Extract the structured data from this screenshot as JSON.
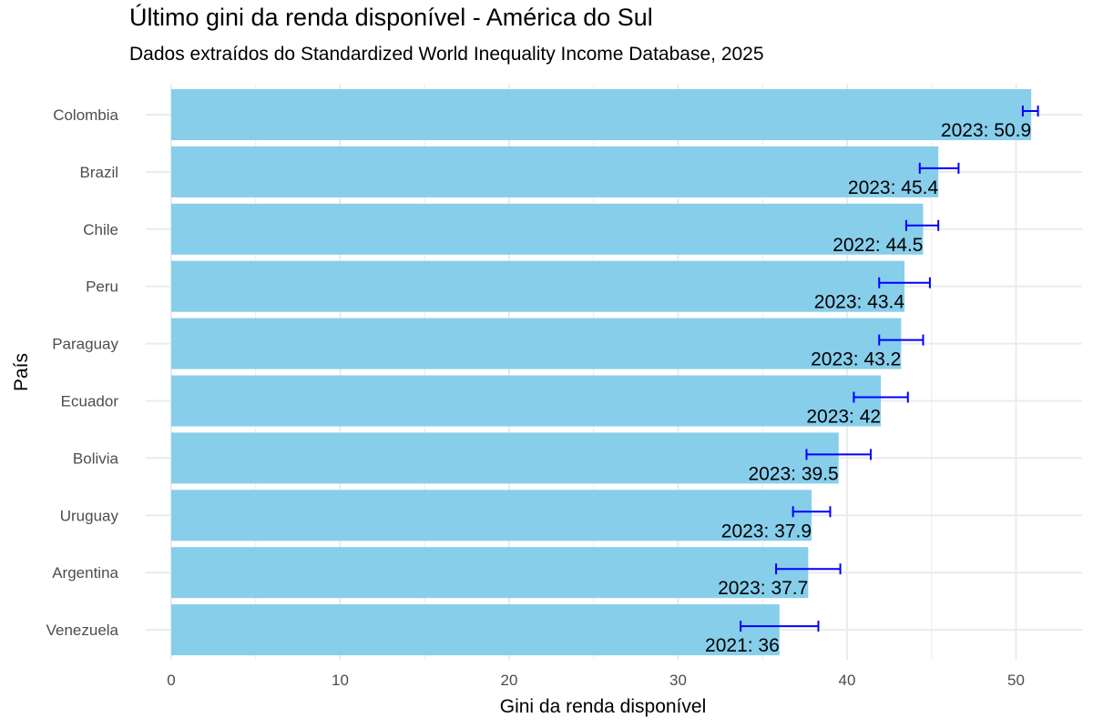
{
  "chart_data": {
    "type": "bar",
    "orientation": "horizontal",
    "title": "Último gini da renda disponível - América do Sul",
    "subtitle": "Dados extraídos do Standardized World Inequality Income Database, 2025",
    "xlabel": "Gini da renda disponível",
    "ylabel": "País",
    "xlim": [
      0,
      54
    ],
    "x_ticks": [
      0,
      10,
      20,
      30,
      40,
      50
    ],
    "grid": true,
    "categories": [
      "Colombia",
      "Brazil",
      "Chile",
      "Peru",
      "Paraguay",
      "Ecuador",
      "Bolivia",
      "Uruguay",
      "Argentina",
      "Venezuela"
    ],
    "values": [
      50.9,
      45.4,
      44.5,
      43.4,
      43.2,
      42,
      39.5,
      37.9,
      37.7,
      36
    ],
    "error_low": [
      50.4,
      44.3,
      43.5,
      41.9,
      41.9,
      40.4,
      37.6,
      36.8,
      35.8,
      33.7
    ],
    "error_high": [
      51.3,
      46.6,
      45.4,
      44.9,
      44.5,
      43.6,
      41.4,
      39.0,
      39.6,
      38.3
    ],
    "data_labels": [
      "2023: 50.9",
      "2023: 45.4",
      "2022: 44.5",
      "2023: 43.4",
      "2023: 43.2",
      "2023: 42",
      "2023: 39.5",
      "2023: 37.9",
      "2023: 37.7",
      "2021: 36"
    ],
    "bar_color": "#87CEEB",
    "error_color": "#0000FF",
    "grid_color": "#EBEBEB"
  }
}
